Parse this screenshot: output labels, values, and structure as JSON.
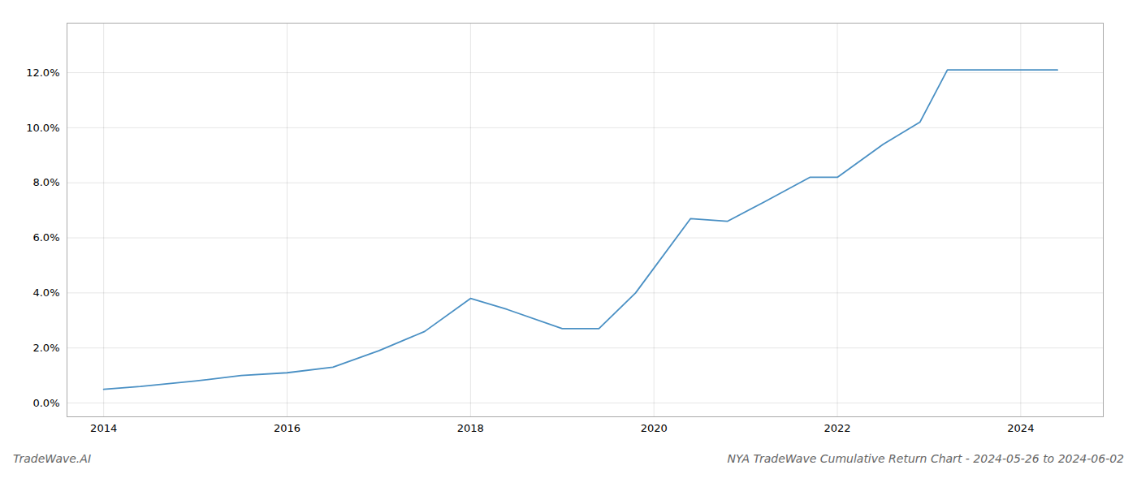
{
  "chart_data": {
    "type": "line",
    "title": "NYA TradeWave Cumulative Return Chart - 2024-05-26 to 2024-06-02",
    "annotations": [
      "TradeWave.AI"
    ],
    "color": "#4a90c4",
    "x": [
      2014.0,
      2014.4,
      2015.0,
      2015.5,
      2016.0,
      2016.5,
      2017.0,
      2017.5,
      2018.0,
      2018.4,
      2019.0,
      2019.4,
      2019.8,
      2020.4,
      2020.8,
      2021.2,
      2021.7,
      2022.0,
      2022.5,
      2022.9,
      2023.2,
      2023.5,
      2024.0,
      2024.4
    ],
    "values": [
      0.005,
      0.006,
      0.008,
      0.01,
      0.011,
      0.013,
      0.019,
      0.026,
      0.038,
      0.034,
      0.027,
      0.027,
      0.04,
      0.067,
      0.066,
      0.073,
      0.082,
      0.082,
      0.094,
      0.102,
      0.121,
      0.121,
      0.121,
      0.121
    ],
    "xlim": [
      2013.6,
      2024.9
    ],
    "ylim": [
      -0.005,
      0.138
    ],
    "xticks": [
      2014,
      2016,
      2018,
      2020,
      2022,
      2024
    ],
    "yticks": [
      {
        "value": 0.0,
        "label": "0.0%"
      },
      {
        "value": 0.02,
        "label": "2.0%"
      },
      {
        "value": 0.04,
        "label": "4.0%"
      },
      {
        "value": 0.06,
        "label": "6.0%"
      },
      {
        "value": 0.08,
        "label": "8.0%"
      },
      {
        "value": 0.1,
        "label": "10.0%"
      },
      {
        "value": 0.12,
        "label": "12.0%"
      }
    ],
    "grid": true
  }
}
